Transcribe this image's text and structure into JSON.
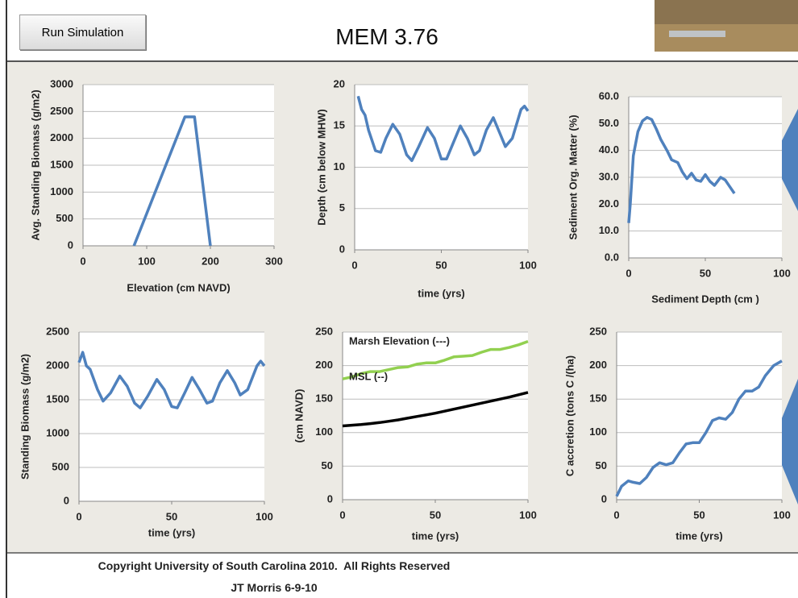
{
  "header": {
    "button": "Run Simulation",
    "title": "MEM 3.76"
  },
  "chart_data": [
    {
      "type": "line",
      "x_label": "Elevation (cm NAVD)",
      "y_label": "Avg. Standing Biomass (g/m2)",
      "x": [
        80,
        160,
        175,
        200
      ],
      "values": [
        0,
        2400,
        2400,
        0
      ],
      "color": "#4f81bd",
      "xlim": [
        0,
        300
      ],
      "xticks": [
        0,
        100,
        200,
        300
      ],
      "ylim": [
        0,
        3000
      ],
      "yticks": [
        0,
        500,
        1000,
        1500,
        2000,
        2500,
        3000
      ],
      "grid": true
    },
    {
      "type": "line",
      "x_label": "time (yrs)",
      "y_label": "Depth (cm below MHW)",
      "x": [
        2,
        4,
        6,
        8,
        12,
        15,
        18,
        22,
        26,
        30,
        33,
        37,
        42,
        46,
        50,
        53,
        57,
        61,
        65,
        69,
        72,
        76,
        80,
        84,
        87,
        91,
        96,
        98,
        100
      ],
      "values": [
        18.6,
        17,
        16.3,
        14.5,
        12,
        11.8,
        13.5,
        15.2,
        14,
        11.5,
        10.8,
        12.5,
        14.8,
        13.5,
        11,
        11,
        13,
        15,
        13.5,
        11.5,
        12,
        14.5,
        16,
        14,
        12.5,
        13.5,
        17,
        17.4,
        16.8
      ],
      "color": "#4f81bd",
      "xlim": [
        0,
        100
      ],
      "xticks": [
        0,
        50,
        100
      ],
      "ylim": [
        0,
        20
      ],
      "yticks": [
        0,
        5,
        10,
        15,
        20
      ],
      "grid": true
    },
    {
      "type": "line",
      "x_label": "Sediment Depth (cm )",
      "y_label": "Sediment Org. Matter (%)",
      "x": [
        0,
        1,
        3,
        6,
        9,
        12,
        15,
        18,
        21,
        25,
        28,
        32,
        35,
        38,
        41,
        44,
        47,
        50,
        53,
        56,
        60,
        63,
        66,
        69
      ],
      "values": [
        13,
        20,
        38,
        47,
        51,
        52.3,
        51.5,
        48,
        44,
        40,
        36.5,
        35.5,
        32,
        29.5,
        31.5,
        29,
        28.5,
        31,
        28.5,
        27,
        30,
        29,
        26.5,
        24
      ],
      "color": "#4f81bd",
      "xlim": [
        0,
        100
      ],
      "xticks": [
        0,
        50,
        100
      ],
      "ylim": [
        0,
        60
      ],
      "yticks": [
        {
          "value": 0,
          "label": "0.0"
        },
        {
          "value": 10,
          "label": "10.0"
        },
        {
          "value": 20,
          "label": "20.0"
        },
        {
          "value": 30,
          "label": "30.0"
        },
        {
          "value": 40,
          "label": "40.0"
        },
        {
          "value": 50,
          "label": "50.0"
        },
        {
          "value": 60,
          "label": "60.0"
        }
      ],
      "grid": true
    },
    {
      "type": "line",
      "x_label": "time (yrs)",
      "y_label": "Standing Biomass (g/m2)",
      "x": [
        0,
        2,
        4,
        6,
        10,
        13,
        17,
        22,
        26,
        30,
        33,
        37,
        42,
        46,
        50,
        53,
        57,
        61,
        65,
        69,
        72,
        76,
        80,
        84,
        87,
        91,
        96,
        98,
        100
      ],
      "values": [
        2050,
        2200,
        2000,
        1950,
        1650,
        1480,
        1600,
        1850,
        1700,
        1450,
        1380,
        1550,
        1800,
        1650,
        1400,
        1380,
        1600,
        1830,
        1650,
        1450,
        1480,
        1750,
        1930,
        1750,
        1570,
        1650,
        2000,
        2070,
        2000
      ],
      "color": "#4f81bd",
      "xlim": [
        0,
        100
      ],
      "xticks": [
        0,
        50,
        100
      ],
      "ylim": [
        0,
        2500
      ],
      "yticks": [
        0,
        500,
        1000,
        1500,
        2000,
        2500
      ],
      "grid": true
    },
    {
      "type": "line",
      "x_label": "time (yrs)",
      "y_label": "(cm NAVD)",
      "annotations": [
        "Marsh Elevation (---)",
        "MSL (--)"
      ],
      "x": [
        0,
        5,
        10,
        15,
        20,
        25,
        30,
        35,
        40,
        45,
        50,
        55,
        60,
        65,
        70,
        75,
        80,
        85,
        90,
        95,
        100
      ],
      "series": [
        {
          "color": "#92d050",
          "values": [
            180,
            183,
            188,
            191,
            191,
            194,
            197,
            198,
            202,
            204,
            204,
            208,
            213,
            214,
            215,
            220,
            224,
            224,
            227,
            231,
            236
          ]
        },
        {
          "color": "#000000",
          "values": [
            110,
            111,
            112,
            113.5,
            115,
            117,
            119,
            121.5,
            124,
            126.5,
            129,
            132,
            135,
            138,
            141,
            144,
            147,
            150,
            153,
            156.5,
            160
          ]
        }
      ],
      "xlim": [
        0,
        100
      ],
      "xticks": [
        0,
        50,
        100
      ],
      "ylim": [
        0,
        250
      ],
      "yticks": [
        0,
        50,
        100,
        150,
        200,
        250
      ],
      "grid": true
    },
    {
      "type": "line",
      "x_label": "time (yrs)",
      "y_label": "C accretion (tons C /(ha)",
      "x": [
        0,
        3,
        7,
        10,
        14,
        18,
        22,
        26,
        30,
        34,
        38,
        42,
        46,
        50,
        54,
        58,
        62,
        66,
        70,
        74,
        78,
        82,
        86,
        90,
        95,
        100
      ],
      "values": [
        5,
        20,
        28,
        26,
        24,
        33,
        48,
        55,
        52,
        55,
        70,
        83,
        85,
        85,
        100,
        118,
        122,
        120,
        130,
        150,
        162,
        162,
        168,
        185,
        200,
        207
      ],
      "color": "#4f81bd",
      "xlim": [
        0,
        100
      ],
      "xticks": [
        0,
        50,
        100
      ],
      "ylim": [
        0,
        250
      ],
      "yticks": [
        0,
        50,
        100,
        150,
        200,
        250
      ],
      "grid": true
    }
  ],
  "footer": {
    "copyright": "Copyright University of South Carolina 2010.  All Rights Reserved",
    "author": "JT Morris 6-9-10"
  }
}
